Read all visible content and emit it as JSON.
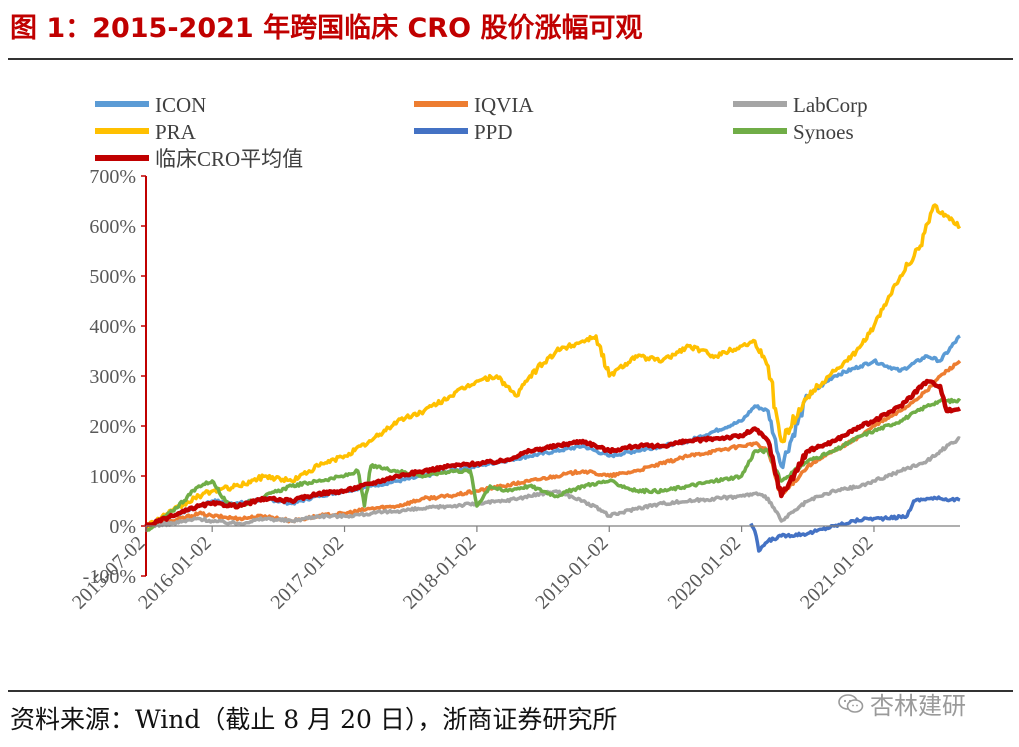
{
  "figure_title": "图 1：2015-2021 年跨国临床 CRO 股价涨幅可观",
  "source_text": "资料来源：Wind（截止 8 月 20 日），浙商证券研究所",
  "watermark_text": "杏林建研",
  "chart_data": {
    "type": "line",
    "title": "",
    "xlabel": "",
    "ylabel": "",
    "ylim": [
      -100,
      700
    ],
    "yticks": [
      -100,
      0,
      100,
      200,
      300,
      400,
      500,
      600,
      700
    ],
    "ytick_labels": [
      "-100%",
      "0%",
      "100%",
      "200%",
      "300%",
      "400%",
      "500%",
      "600%",
      "700%"
    ],
    "xlim": [
      2015.5,
      2021.65
    ],
    "xticks": [
      2015.5,
      2016.0,
      2017.0,
      2018.0,
      2019.0,
      2020.0,
      2021.0
    ],
    "xtick_labels": [
      "2015-07-02",
      "2016-01-02",
      "2017-01-02",
      "2018-01-02",
      "2019-01-02",
      "2020-01-02",
      "2021-01-02"
    ],
    "legend_position": "top",
    "series": [
      {
        "name": "ICON",
        "color": "#5b9bd5",
        "x": [
          2015.5,
          2015.7,
          2015.9,
          2016.0,
          2016.2,
          2016.4,
          2016.6,
          2016.8,
          2017.0,
          2017.2,
          2017.4,
          2017.6,
          2017.8,
          2018.0,
          2018.2,
          2018.4,
          2018.6,
          2018.8,
          2019.0,
          2019.2,
          2019.4,
          2019.6,
          2019.8,
          2020.0,
          2020.1,
          2020.2,
          2020.3,
          2020.5,
          2020.7,
          2020.9,
          2021.0,
          2021.2,
          2021.4,
          2021.5,
          2021.65
        ],
        "values": [
          0,
          20,
          40,
          50,
          45,
          55,
          45,
          60,
          70,
          80,
          90,
          100,
          110,
          120,
          130,
          140,
          150,
          160,
          140,
          150,
          160,
          170,
          190,
          210,
          240,
          230,
          120,
          260,
          300,
          320,
          330,
          310,
          340,
          330,
          380
        ]
      },
      {
        "name": "IQVIA",
        "color": "#ed7d31",
        "x": [
          2015.5,
          2015.7,
          2015.9,
          2016.0,
          2016.2,
          2016.4,
          2016.6,
          2016.8,
          2017.0,
          2017.2,
          2017.4,
          2017.6,
          2017.8,
          2018.0,
          2018.2,
          2018.4,
          2018.6,
          2018.8,
          2019.0,
          2019.2,
          2019.4,
          2019.6,
          2019.8,
          2020.0,
          2020.1,
          2020.2,
          2020.3,
          2020.5,
          2020.7,
          2020.9,
          2021.0,
          2021.2,
          2021.4,
          2021.5,
          2021.65
        ],
        "values": [
          0,
          10,
          25,
          20,
          15,
          20,
          10,
          20,
          25,
          35,
          40,
          55,
          60,
          70,
          80,
          90,
          100,
          110,
          100,
          110,
          125,
          140,
          150,
          160,
          165,
          150,
          60,
          120,
          150,
          180,
          200,
          230,
          270,
          300,
          330
        ]
      },
      {
        "name": "LabCorp",
        "color": "#a5a5a5",
        "x": [
          2015.5,
          2015.7,
          2015.9,
          2016.0,
          2016.2,
          2016.4,
          2016.6,
          2016.8,
          2017.0,
          2017.2,
          2017.4,
          2017.6,
          2017.8,
          2018.0,
          2018.2,
          2018.4,
          2018.6,
          2018.8,
          2018.95,
          2019.0,
          2019.2,
          2019.4,
          2019.6,
          2019.8,
          2020.0,
          2020.1,
          2020.2,
          2020.3,
          2020.5,
          2020.7,
          2020.9,
          2021.0,
          2021.2,
          2021.4,
          2021.5,
          2021.65
        ],
        "values": [
          0,
          5,
          15,
          10,
          5,
          15,
          10,
          20,
          20,
          25,
          30,
          35,
          40,
          45,
          50,
          60,
          70,
          50,
          30,
          20,
          35,
          45,
          50,
          55,
          60,
          65,
          55,
          10,
          50,
          70,
          80,
          90,
          110,
          130,
          150,
          175
        ]
      },
      {
        "name": "PRA",
        "color": "#ffc000",
        "x": [
          2015.5,
          2015.7,
          2015.9,
          2016.0,
          2016.2,
          2016.4,
          2016.6,
          2016.8,
          2017.0,
          2017.2,
          2017.4,
          2017.6,
          2017.8,
          2018.0,
          2018.15,
          2018.3,
          2018.4,
          2018.6,
          2018.8,
          2018.9,
          2019.0,
          2019.2,
          2019.4,
          2019.6,
          2019.8,
          2020.0,
          2020.1,
          2020.2,
          2020.3,
          2020.5,
          2020.7,
          2020.8,
          2020.9,
          2021.0,
          2021.1,
          2021.2,
          2021.35,
          2021.45,
          2021.55,
          2021.65
        ],
        "values": [
          0,
          30,
          60,
          70,
          80,
          100,
          90,
          120,
          140,
          170,
          210,
          230,
          260,
          290,
          300,
          260,
          300,
          350,
          370,
          380,
          300,
          340,
          330,
          360,
          340,
          360,
          370,
          320,
          170,
          260,
          310,
          330,
          360,
          400,
          450,
          500,
          560,
          640,
          620,
          600
        ]
      },
      {
        "name": "PPD",
        "color": "#4472c4",
        "x": [
          2020.07,
          2020.1,
          2020.13,
          2020.16,
          2020.2,
          2020.3,
          2020.5,
          2020.7,
          2020.85,
          2020.95,
          2021.0,
          2021.1,
          2021.25,
          2021.3,
          2021.4,
          2021.5,
          2021.65
        ],
        "values": [
          5,
          -10,
          -50,
          -40,
          -30,
          -20,
          -15,
          0,
          10,
          15,
          15,
          15,
          20,
          50,
          55,
          55,
          52
        ]
      },
      {
        "name": "Synoes",
        "color": "#70ad47",
        "x": [
          2015.5,
          2015.7,
          2015.9,
          2016.0,
          2016.1,
          2016.2,
          2016.4,
          2016.6,
          2016.8,
          2017.0,
          2017.1,
          2017.15,
          2017.2,
          2017.4,
          2017.6,
          2017.8,
          2017.95,
          2018.0,
          2018.1,
          2018.2,
          2018.4,
          2018.6,
          2018.8,
          2019.0,
          2019.2,
          2019.4,
          2019.6,
          2019.8,
          2020.0,
          2020.1,
          2020.2,
          2020.3,
          2020.5,
          2020.7,
          2020.9,
          2021.0,
          2021.2,
          2021.4,
          2021.5,
          2021.65
        ],
        "values": [
          -10,
          30,
          80,
          90,
          50,
          40,
          60,
          80,
          90,
          100,
          110,
          40,
          120,
          110,
          100,
          110,
          110,
          40,
          80,
          70,
          80,
          60,
          80,
          90,
          70,
          70,
          80,
          90,
          100,
          150,
          150,
          90,
          130,
          150,
          180,
          190,
          210,
          240,
          250,
          250
        ]
      },
      {
        "name": "临床CRO平均值",
        "color": "#c00000",
        "x": [
          2015.5,
          2015.7,
          2015.9,
          2016.0,
          2016.2,
          2016.4,
          2016.6,
          2016.8,
          2017.0,
          2017.2,
          2017.4,
          2017.6,
          2017.8,
          2018.0,
          2018.2,
          2018.4,
          2018.6,
          2018.8,
          2019.0,
          2019.2,
          2019.4,
          2019.6,
          2019.8,
          2020.0,
          2020.1,
          2020.2,
          2020.3,
          2020.5,
          2020.7,
          2020.9,
          2021.0,
          2021.2,
          2021.4,
          2021.5,
          2021.55,
          2021.65
        ],
        "values": [
          0,
          20,
          40,
          45,
          40,
          55,
          50,
          65,
          70,
          85,
          100,
          110,
          120,
          125,
          130,
          150,
          160,
          170,
          150,
          160,
          160,
          170,
          175,
          180,
          195,
          170,
          60,
          150,
          170,
          200,
          210,
          240,
          290,
          280,
          230,
          235
        ]
      }
    ]
  }
}
